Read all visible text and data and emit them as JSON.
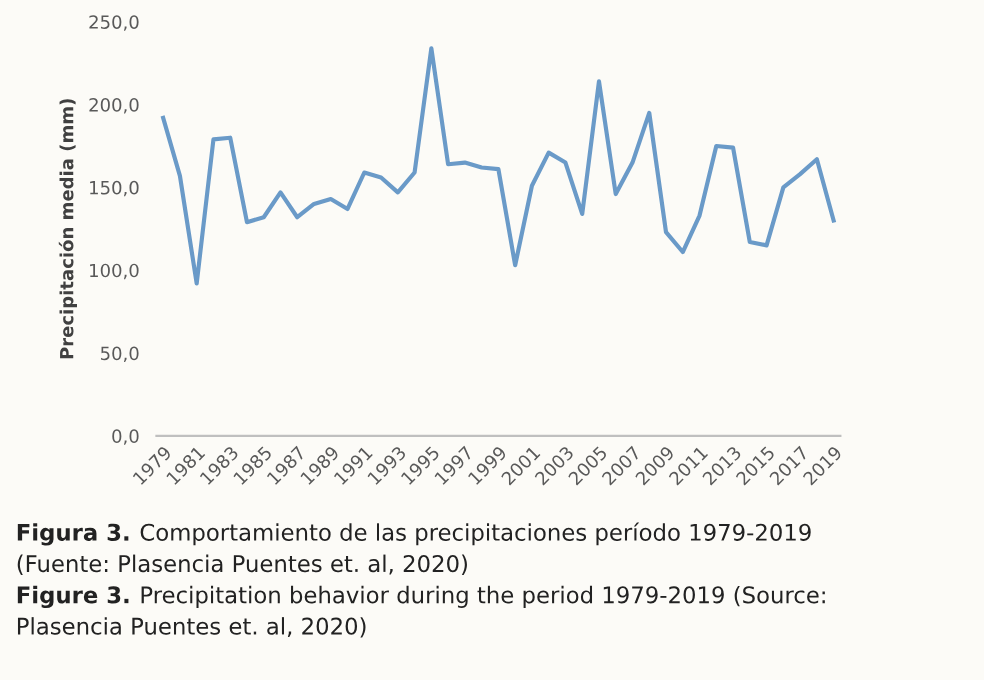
{
  "chart_data": {
    "type": "line",
    "ylabel": "Precipitación media (mm)",
    "categories": [
      "1979",
      null,
      "1981",
      null,
      "1983",
      null,
      "1985",
      null,
      "1987",
      null,
      "1989",
      null,
      "1991",
      null,
      "1993",
      null,
      "1995",
      null,
      "1997",
      null,
      "1999",
      null,
      "2001",
      null,
      "2003",
      null,
      "2005",
      null,
      "2007",
      null,
      "2009",
      null,
      "2011",
      null,
      "2013",
      null,
      "2015",
      null,
      "2017",
      null,
      "2019"
    ],
    "series": [
      {
        "color": "#6a9ac8",
        "values": [
          192,
          157,
          92,
          179,
          180,
          129,
          132,
          147,
          132,
          140,
          143,
          137,
          159,
          156,
          147,
          159,
          234,
          164,
          165,
          162,
          161,
          103,
          151,
          171,
          165,
          134,
          214,
          146,
          165,
          195,
          123,
          111,
          133,
          175,
          174,
          117,
          115,
          150,
          158,
          167,
          130
        ]
      }
    ],
    "ylim": [
      0,
      250
    ],
    "yticks": [
      {
        "value": 0,
        "label": "0,0"
      },
      {
        "value": 50,
        "label": "50,0"
      },
      {
        "value": 100,
        "label": "100,0"
      },
      {
        "value": 150,
        "label": "150,0"
      },
      {
        "value": 200,
        "label": "200,0"
      },
      {
        "value": 250,
        "label": "250,0"
      }
    ],
    "grid": false,
    "legend": false,
    "marker": "none",
    "line_style": "solid",
    "annotations": [
      "Figura 3.",
      "Comportamiento de las precipitaciones período 1979-2019",
      "(Fuente: Plasencia Puentes et. al, 2020)",
      "Figure 3.",
      "Precipitation behavior during the period 1979-2019 (Source:",
      "Plasencia Puentes et. al, 2020)"
    ]
  }
}
